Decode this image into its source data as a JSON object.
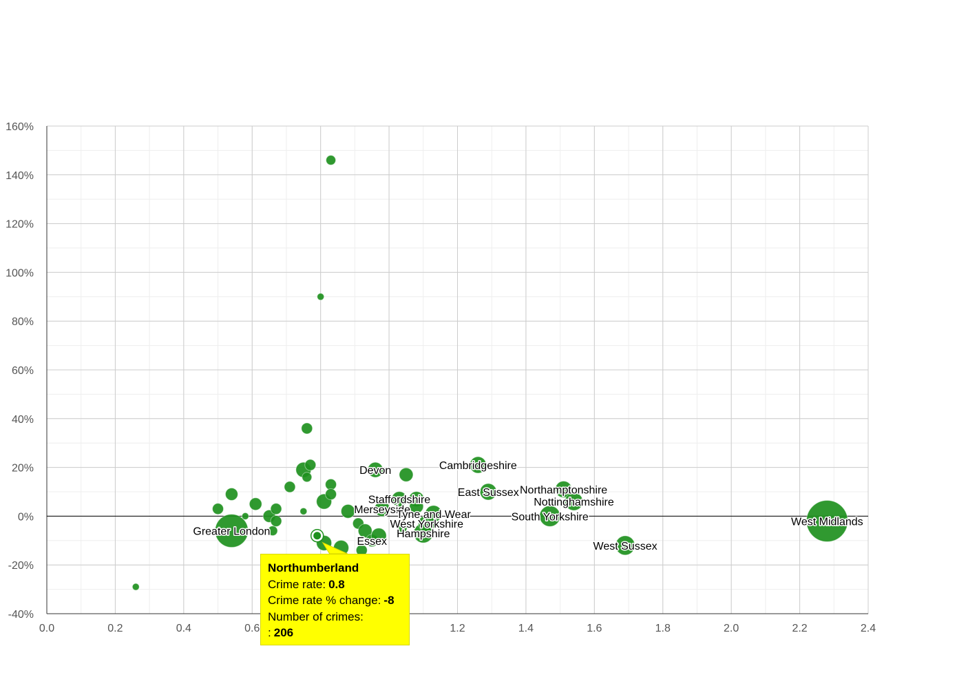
{
  "colors": {
    "bubble": "#1e901e",
    "grid": "#cccccc",
    "grid_minor": "#eeeeee",
    "zero_line": "#000000",
    "tooltip_bg": "#ffff00"
  },
  "chart_data": {
    "type": "scatter",
    "xlabel": "",
    "ylabel": "",
    "xlim": [
      0,
      2.4
    ],
    "ylim": [
      -40,
      160
    ],
    "x_ticks": [
      "0.0",
      "0.2",
      "0.4",
      "0.6",
      "0.8",
      "1.0",
      "1.2",
      "1.4",
      "1.6",
      "1.8",
      "2.0",
      "2.2",
      "2.4"
    ],
    "y_ticks": [
      "-40%",
      "-20%",
      "0%",
      "20%",
      "40%",
      "60%",
      "80%",
      "100%",
      "120%",
      "140%",
      "160%"
    ],
    "grid": true,
    "points": [
      {
        "x": 0.83,
        "y": 146,
        "r": 7,
        "label": ""
      },
      {
        "x": 0.8,
        "y": 90,
        "r": 5,
        "label": ""
      },
      {
        "x": 0.76,
        "y": 36,
        "r": 8,
        "label": ""
      },
      {
        "x": 0.26,
        "y": -29,
        "r": 5,
        "label": ""
      },
      {
        "x": 0.54,
        "y": -6,
        "r": 24,
        "label": "Greater London"
      },
      {
        "x": 0.5,
        "y": 3,
        "r": 8,
        "label": ""
      },
      {
        "x": 0.54,
        "y": 9,
        "r": 9,
        "label": ""
      },
      {
        "x": 0.58,
        "y": 0,
        "r": 5,
        "label": ""
      },
      {
        "x": 0.61,
        "y": 5,
        "r": 9,
        "label": ""
      },
      {
        "x": 0.65,
        "y": 0,
        "r": 9,
        "label": ""
      },
      {
        "x": 0.66,
        "y": -6,
        "r": 7,
        "label": ""
      },
      {
        "x": 0.67,
        "y": 3,
        "r": 8,
        "label": ""
      },
      {
        "x": 0.67,
        "y": -2,
        "r": 8,
        "label": ""
      },
      {
        "x": 0.71,
        "y": 12,
        "r": 8,
        "label": ""
      },
      {
        "x": 0.75,
        "y": 2,
        "r": 5,
        "label": ""
      },
      {
        "x": 0.75,
        "y": 19,
        "r": 11,
        "label": ""
      },
      {
        "x": 0.76,
        "y": 16,
        "r": 7,
        "label": ""
      },
      {
        "x": 0.77,
        "y": 21,
        "r": 8,
        "label": ""
      },
      {
        "x": 0.79,
        "y": -8,
        "r": 8,
        "label": ""
      },
      {
        "x": 0.81,
        "y": -11,
        "r": 11,
        "label": ""
      },
      {
        "x": 0.81,
        "y": 6,
        "r": 11,
        "label": ""
      },
      {
        "x": 0.83,
        "y": 13,
        "r": 8,
        "label": ""
      },
      {
        "x": 0.83,
        "y": 9,
        "r": 8,
        "label": ""
      },
      {
        "x": 0.86,
        "y": -13,
        "r": 11,
        "label": ""
      },
      {
        "x": 0.88,
        "y": 2,
        "r": 10,
        "label": ""
      },
      {
        "x": 0.91,
        "y": -3,
        "r": 8,
        "label": ""
      },
      {
        "x": 0.93,
        "y": -6,
        "r": 10,
        "label": ""
      },
      {
        "x": 0.92,
        "y": -14,
        "r": 8,
        "label": ""
      },
      {
        "x": 0.95,
        "y": -10,
        "r": 9,
        "label": "Essex"
      },
      {
        "x": 0.97,
        "y": -8,
        "r": 11,
        "label": ""
      },
      {
        "x": 0.96,
        "y": 19,
        "r": 11,
        "label": "Devon"
      },
      {
        "x": 0.98,
        "y": 3,
        "r": 11,
        "label": "Merseyside"
      },
      {
        "x": 1.03,
        "y": 7,
        "r": 11,
        "label": "Staffordshire"
      },
      {
        "x": 1.05,
        "y": 17,
        "r": 10,
        "label": ""
      },
      {
        "x": 1.04,
        "y": -5,
        "r": 6,
        "label": ""
      },
      {
        "x": 1.08,
        "y": 7,
        "r": 11,
        "label": ""
      },
      {
        "x": 1.08,
        "y": 4,
        "r": 10,
        "label": ""
      },
      {
        "x": 1.1,
        "y": -7,
        "r": 14,
        "label": "Hampshire"
      },
      {
        "x": 1.11,
        "y": -3,
        "r": 12,
        "label": "West Yorkshire"
      },
      {
        "x": 1.13,
        "y": 1,
        "r": 12,
        "label": "Tyne and Wear"
      },
      {
        "x": 1.26,
        "y": 21,
        "r": 12,
        "label": "Cambridgeshire"
      },
      {
        "x": 1.29,
        "y": 10,
        "r": 12,
        "label": "East Sussex"
      },
      {
        "x": 1.47,
        "y": 0,
        "r": 15,
        "label": "South Yorkshire"
      },
      {
        "x": 1.51,
        "y": 11,
        "r": 12,
        "label": "Northamptonshire"
      },
      {
        "x": 1.54,
        "y": 6,
        "r": 13,
        "label": "Nottinghamshire"
      },
      {
        "x": 1.69,
        "y": -12,
        "r": 14,
        "label": "West Sussex"
      },
      {
        "x": 2.28,
        "y": -2,
        "r": 30,
        "label": "West Midlands"
      }
    ],
    "highlighted": {
      "x": 0.79,
      "y": -8,
      "name": "Northumberland"
    }
  },
  "tooltip": {
    "title": "Northumberland",
    "rows": [
      {
        "label": "Crime rate:",
        "value": "0.8"
      },
      {
        "label": "Crime rate % change:",
        "value": "-8"
      },
      {
        "label": "Number of crimes:",
        "value": ""
      },
      {
        "label": ":",
        "value": "206"
      }
    ]
  }
}
